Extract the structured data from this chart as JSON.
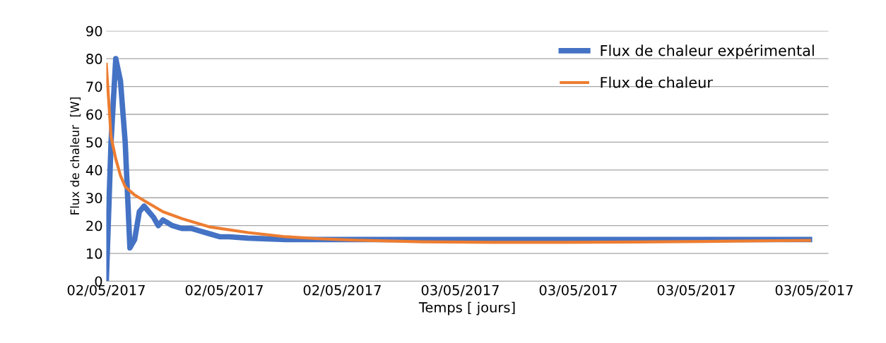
{
  "chart_data": {
    "type": "line",
    "xlabel": "Temps [ jours]",
    "ylabel": "Flux de chaleur  [W]",
    "categories": [
      "02/05/2017",
      null,
      null,
      null,
      null,
      null,
      null,
      null,
      null,
      null,
      null,
      null,
      null,
      null,
      null,
      null,
      null,
      null,
      null,
      null,
      null,
      null,
      null,
      null,
      null,
      "02/05/2017",
      null,
      null,
      null,
      null,
      null,
      null,
      null,
      null,
      null,
      null,
      null,
      null,
      null,
      null,
      null,
      null,
      null,
      null,
      null,
      null,
      null,
      null,
      null,
      null,
      "02/05/2017",
      null,
      null,
      null,
      null,
      null,
      null,
      null,
      null,
      null,
      null,
      null,
      null,
      null,
      null,
      null,
      null,
      null,
      null,
      null,
      null,
      null,
      null,
      null,
      null,
      "03/05/2017",
      null,
      null,
      null,
      null,
      null,
      null,
      null,
      null,
      null,
      null,
      null,
      null,
      null,
      null,
      null,
      null,
      null,
      null,
      null,
      null,
      null,
      null,
      null,
      null,
      "03/05/2017",
      null,
      null,
      null,
      null,
      null,
      null,
      null,
      null,
      null,
      null,
      null,
      null,
      null,
      null,
      null,
      null,
      null,
      null,
      null,
      null,
      null,
      null,
      null,
      null,
      "03/05/2017",
      null,
      null,
      null,
      null,
      null,
      null,
      null,
      null,
      null,
      null,
      null,
      null,
      null,
      null,
      null,
      null,
      null,
      null,
      null,
      null,
      null,
      null,
      null,
      null,
      "03/05/2017",
      null,
      null,
      null
    ],
    "ylim": [
      0,
      90
    ],
    "yticks": [
      0,
      10,
      20,
      30,
      40,
      50,
      60,
      70,
      80,
      90
    ],
    "grid": "y",
    "legend": "top right",
    "line_style": "solid",
    "marker": "none",
    "series": [
      {
        "name": "Flux de chaleur expérimental",
        "color": "#4472c4",
        "values": [
          0,
          50,
          80,
          72,
          50,
          12,
          15,
          25,
          27,
          25,
          23,
          20,
          22,
          null,
          20,
          null,
          19,
          null,
          19,
          null,
          18,
          null,
          17,
          null,
          16,
          null,
          16,
          null,
          null,
          null,
          15.5,
          null,
          null,
          null,
          null,
          null,
          null,
          null,
          15,
          null,
          null,
          null,
          null,
          null,
          null,
          null,
          null,
          null,
          null,
          null,
          15,
          null,
          null,
          null,
          null,
          null,
          null,
          null,
          null,
          null,
          null,
          null,
          null,
          null,
          null,
          null,
          null,
          null,
          null,
          null,
          null,
          null,
          null,
          null,
          null,
          15,
          null,
          null,
          null,
          null,
          null,
          null,
          null,
          null,
          null,
          null,
          null,
          null,
          null,
          null,
          null,
          null,
          null,
          null,
          null,
          null,
          null,
          null,
          null,
          null,
          15,
          null,
          null,
          null,
          null,
          null,
          null,
          null,
          null,
          null,
          null,
          null,
          null,
          null,
          null,
          null,
          null,
          null,
          null,
          null,
          null,
          null,
          null,
          null,
          null,
          15,
          null,
          null,
          null,
          null,
          null,
          null,
          null,
          null,
          null,
          null,
          null,
          null,
          null,
          null,
          null,
          null,
          null,
          null,
          null,
          null,
          null,
          null,
          null,
          15,
          null,
          null,
          null,
          null
        ]
      },
      {
        "name": "Flux de chaleur",
        "color": "#ed7d31",
        "values": [
          78,
          52,
          44,
          38,
          34,
          null,
          31,
          null,
          29,
          null,
          null,
          null,
          25,
          null,
          null,
          null,
          22.5,
          null,
          null,
          null,
          null,
          null,
          19.5,
          null,
          null,
          null,
          null,
          null,
          null,
          null,
          17.5,
          null,
          null,
          null,
          null,
          null,
          null,
          null,
          16,
          null,
          null,
          null,
          null,
          null,
          null,
          15.3,
          null,
          null,
          null,
          null,
          null,
          null,
          14.8,
          null,
          null,
          null,
          null,
          null,
          null,
          null,
          null,
          null,
          null,
          null,
          null,
          null,
          null,
          14.2,
          null,
          null,
          null,
          null,
          null,
          null,
          null,
          null,
          null,
          null,
          null,
          null,
          null,
          null,
          14,
          null,
          null,
          null,
          null,
          null,
          null,
          null,
          null,
          null,
          null,
          null,
          null,
          null,
          null,
          14,
          null,
          null,
          null,
          null,
          null,
          null,
          null,
          null,
          null,
          null,
          null,
          null,
          null,
          null,
          14.1,
          null,
          null,
          null,
          null,
          null,
          null,
          null,
          null,
          null,
          null,
          null,
          null,
          null,
          null,
          14.3,
          null,
          null,
          null,
          null,
          null,
          null,
          null,
          null,
          null,
          null,
          null,
          null,
          null,
          null,
          14.6,
          null,
          null,
          null,
          null,
          null,
          null,
          14.7,
          null,
          null,
          null,
          null
        ]
      }
    ]
  }
}
